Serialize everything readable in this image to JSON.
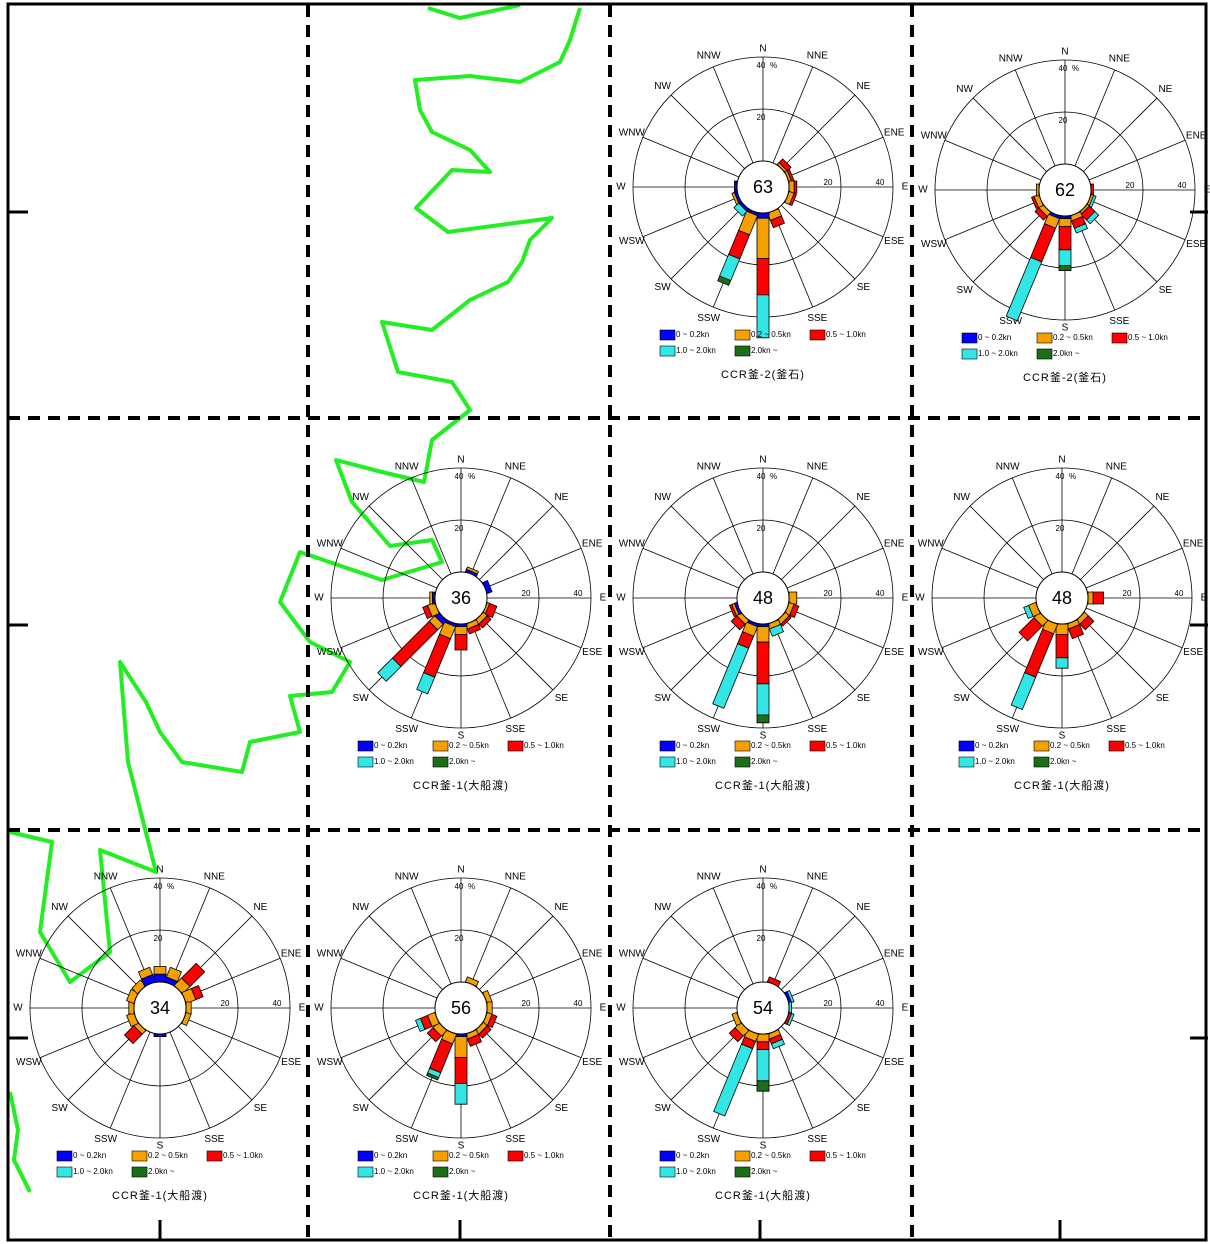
{
  "chart_data": [
    {
      "type": "rose",
      "title": "CCR釜-2(釜石)",
      "center_label": 63,
      "directions": [
        "N",
        "NNE",
        "NE",
        "ENE",
        "E",
        "ESE",
        "SE",
        "SSE",
        "S",
        "SSW",
        "SW",
        "WSW",
        "W",
        "WNW",
        "NW",
        "NNW"
      ],
      "rlim": [
        0,
        40
      ],
      "rticks": [
        20,
        40
      ],
      "r_unit": "%",
      "series": [
        {
          "name": "0 ~ 0.2kn",
          "color": "#0000ff",
          "values": [
            0,
            0,
            0,
            0,
            0,
            0,
            0,
            0,
            2,
            1,
            1,
            1,
            1,
            0,
            0,
            0
          ]
        },
        {
          "name": "0.2 ~ 0.5kn",
          "color": "#f5a000",
          "values": [
            0,
            0,
            1,
            1,
            2,
            2,
            0,
            3,
            15.5,
            8,
            0,
            1,
            0,
            0,
            0,
            0
          ]
        },
        {
          "name": "0.5 ~ 1.0kn",
          "color": "#ff0000",
          "values": [
            0,
            0,
            2,
            1,
            1,
            1,
            0,
            3,
            14,
            10,
            0,
            0,
            0,
            0,
            0,
            0
          ]
        },
        {
          "name": "1.0 ~ 2.0kn",
          "color": "#33e6e6",
          "values": [
            0,
            0,
            0,
            0,
            0,
            0,
            0,
            0,
            16.5,
            9,
            2.5,
            0,
            0,
            0,
            0,
            0
          ]
        },
        {
          "name": "2.0kn ~",
          "color": "#1a6e1a",
          "values": [
            0,
            0,
            0,
            0,
            0,
            0,
            0,
            0,
            0,
            2,
            0,
            0,
            0,
            0,
            0,
            0
          ]
        }
      ]
    },
    {
      "type": "rose",
      "title": "CCR釜-2(釜石)",
      "center_label": 62,
      "directions": [
        "N",
        "NNE",
        "NE",
        "ENE",
        "E",
        "ESE",
        "SE",
        "SSE",
        "S",
        "SSW",
        "SW",
        "WSW",
        "W",
        "WNW",
        "NW",
        "NNW"
      ],
      "rlim": [
        0,
        40
      ],
      "rticks": [
        20,
        40
      ],
      "r_unit": "%",
      "series": [
        {
          "name": "0 ~ 0.2kn",
          "color": "#0000ff",
          "values": [
            0,
            0,
            0,
            0,
            0,
            0,
            0,
            0,
            1,
            1,
            0,
            0,
            0,
            0,
            0,
            0
          ]
        },
        {
          "name": "0.2 ~ 0.5kn",
          "color": "#f5a000",
          "values": [
            0,
            0,
            0,
            0,
            0,
            1,
            1,
            2,
            3,
            4,
            2,
            2,
            1,
            0,
            0,
            0
          ]
        },
        {
          "name": "0.5 ~ 1.0kn",
          "color": "#ff0000",
          "values": [
            0,
            0,
            0,
            0,
            1,
            0,
            3,
            3,
            9,
            14,
            2,
            1,
            0,
            0,
            0,
            0
          ]
        },
        {
          "name": "1.0 ~ 2.0kn",
          "color": "#33e6e6",
          "values": [
            0,
            0,
            0,
            0,
            0,
            1,
            2,
            2,
            6,
            24.5,
            0,
            0,
            0,
            0,
            0,
            0
          ]
        },
        {
          "name": "2.0kn ~",
          "color": "#1a6e1a",
          "values": [
            0,
            0,
            0,
            0,
            0,
            0,
            0,
            0,
            2,
            0,
            0,
            0,
            0,
            0,
            0,
            0
          ]
        }
      ]
    },
    {
      "type": "rose",
      "title": "CCR釜-1(大船渡)",
      "center_label": 36,
      "directions": [
        "N",
        "NNE",
        "NE",
        "ENE",
        "E",
        "ESE",
        "SE",
        "SSE",
        "S",
        "SSW",
        "SW",
        "WSW",
        "W",
        "WNW",
        "NW",
        "NNW"
      ],
      "rlim": [
        0,
        40
      ],
      "rticks": [
        20,
        40
      ],
      "r_unit": "%",
      "series": [
        {
          "name": "0 ~ 0.2kn",
          "color": "#0000ff",
          "values": [
            0,
            1,
            0,
            2,
            0,
            0,
            0,
            0,
            1,
            1,
            2,
            0,
            1,
            0,
            0,
            0
          ]
        },
        {
          "name": "0.2 ~ 0.5kn",
          "color": "#f5a000",
          "values": [
            0,
            1,
            0,
            0,
            0,
            1,
            2,
            2,
            3,
            5,
            3,
            3,
            1,
            0,
            0,
            0
          ]
        },
        {
          "name": "0.5 ~ 1.0kn",
          "color": "#ff0000",
          "values": [
            0,
            0,
            0,
            0,
            0,
            3,
            2,
            2,
            6,
            16,
            20,
            2,
            0,
            0,
            0,
            0
          ]
        },
        {
          "name": "1.0 ~ 2.0kn",
          "color": "#33e6e6",
          "values": [
            0,
            0,
            0,
            0,
            0,
            0,
            0,
            0,
            0,
            7,
            8,
            0,
            0,
            0,
            0,
            0
          ]
        },
        {
          "name": "2.0kn ~",
          "color": "#1a6e1a",
          "values": [
            0,
            0,
            0,
            0,
            0,
            0,
            0,
            0,
            0,
            0,
            0,
            0,
            0,
            0,
            0,
            0
          ]
        }
      ]
    },
    {
      "type": "rose",
      "title": "CCR釜-1(大船渡)",
      "center_label": 48,
      "directions": [
        "N",
        "NNE",
        "NE",
        "ENE",
        "E",
        "ESE",
        "SE",
        "SSE",
        "S",
        "SSW",
        "SW",
        "WSW",
        "W",
        "WNW",
        "NW",
        "NNW"
      ],
      "rlim": [
        0,
        40
      ],
      "rticks": [
        20,
        40
      ],
      "r_unit": "%",
      "series": [
        {
          "name": "0 ~ 0.2kn",
          "color": "#0000ff",
          "values": [
            0,
            0,
            0,
            0,
            0,
            0,
            0,
            0,
            1,
            1,
            0,
            1,
            0,
            0,
            0,
            0
          ]
        },
        {
          "name": "0.2 ~ 0.5kn",
          "color": "#f5a000",
          "values": [
            0,
            0,
            0,
            0,
            3,
            2,
            2,
            2,
            6,
            4,
            2,
            1,
            0,
            0,
            0,
            0
          ]
        },
        {
          "name": "0.5 ~ 1.0kn",
          "color": "#ff0000",
          "values": [
            0,
            0,
            0,
            0,
            0,
            2,
            1,
            0,
            16,
            5,
            3,
            1,
            0,
            0,
            0,
            0
          ]
        },
        {
          "name": "1.0 ~ 2.0kn",
          "color": "#33e6e6",
          "values": [
            0,
            0,
            0,
            0,
            0,
            0,
            0,
            3,
            12,
            25,
            0,
            0,
            0,
            0,
            0,
            0
          ]
        },
        {
          "name": "2.0kn ~",
          "color": "#1a6e1a",
          "values": [
            0,
            0,
            0,
            0,
            0,
            0,
            0,
            0,
            3,
            0,
            0,
            0,
            0,
            0,
            0,
            0
          ]
        }
      ]
    },
    {
      "type": "rose",
      "title": "CCR釜-1(大船渡)",
      "center_label": 48,
      "directions": [
        "N",
        "NNE",
        "NE",
        "ENE",
        "E",
        "ESE",
        "SE",
        "SSE",
        "S",
        "SSW",
        "SW",
        "WSW",
        "W",
        "WNW",
        "NW",
        "NNW"
      ],
      "rlim": [
        0,
        40
      ],
      "rticks": [
        20,
        40
      ],
      "r_unit": "%",
      "series": [
        {
          "name": "0 ~ 0.2kn",
          "color": "#0000ff",
          "values": [
            0,
            0,
            0,
            0,
            0,
            0,
            0,
            0,
            0,
            0,
            0,
            0,
            0,
            0,
            0,
            0
          ]
        },
        {
          "name": "0.2 ~ 0.5kn",
          "color": "#f5a000",
          "values": [
            0,
            0,
            0,
            0,
            2,
            0,
            2,
            2,
            4,
            4,
            3,
            3,
            0,
            0,
            0,
            0
          ]
        },
        {
          "name": "0.5 ~ 1.0kn",
          "color": "#ff0000",
          "values": [
            0,
            0,
            0,
            0,
            4,
            0,
            3,
            4,
            9,
            18,
            8,
            0,
            0,
            0,
            0,
            0
          ]
        },
        {
          "name": "1.0 ~ 2.0kn",
          "color": "#33e6e6",
          "values": [
            0,
            0,
            0,
            0,
            0,
            0,
            0,
            0,
            4,
            13.5,
            0,
            2,
            0,
            0,
            0,
            0
          ]
        },
        {
          "name": "2.0kn ~",
          "color": "#1a6e1a",
          "values": [
            0,
            0,
            0,
            0,
            0,
            0,
            0,
            0,
            0,
            0,
            0,
            0,
            0,
            0,
            0,
            0
          ]
        }
      ]
    },
    {
      "type": "rose",
      "title": "CCR釜-1(大船渡)",
      "center_label": 34,
      "directions": [
        "N",
        "NNE",
        "NE",
        "ENE",
        "E",
        "ESE",
        "SE",
        "SSE",
        "S",
        "SSW",
        "SW",
        "WSW",
        "W",
        "WNW",
        "NW",
        "NNW"
      ],
      "rlim": [
        0,
        40
      ],
      "rticks": [
        20,
        40
      ],
      "r_unit": "%",
      "series": [
        {
          "name": "0 ~ 0.2kn",
          "color": "#0000ff",
          "values": [
            3,
            2,
            0,
            0,
            0,
            0,
            0,
            0,
            1,
            0,
            0,
            0,
            0,
            0,
            0,
            3
          ]
        },
        {
          "name": "0.2 ~ 0.5kn",
          "color": "#f5a000",
          "values": [
            3,
            4,
            4,
            4,
            2,
            2,
            0,
            0,
            0,
            0,
            2,
            3,
            2,
            3,
            3,
            3
          ]
        },
        {
          "name": "0.5 ~ 1.0kn",
          "color": "#ff0000",
          "values": [
            0,
            0,
            8,
            3,
            0,
            0,
            0,
            0,
            0,
            0,
            5,
            0,
            0,
            0,
            0,
            0
          ]
        },
        {
          "name": "1.0 ~ 2.0kn",
          "color": "#33e6e6",
          "values": [
            0,
            0,
            0,
            0,
            0,
            0,
            0,
            0,
            0,
            0,
            0,
            0,
            0,
            0,
            0,
            0
          ]
        },
        {
          "name": "2.0kn ~",
          "color": "#1a6e1a",
          "values": [
            0,
            0,
            0,
            0,
            0,
            0,
            0,
            0,
            0,
            0,
            0,
            0,
            0,
            0,
            0,
            0
          ]
        }
      ]
    },
    {
      "type": "rose",
      "title": "CCR釜-1(大船渡)",
      "center_label": 56,
      "directions": [
        "N",
        "NNE",
        "NE",
        "ENE",
        "E",
        "ESE",
        "SE",
        "SSE",
        "S",
        "SSW",
        "SW",
        "WSW",
        "W",
        "WNW",
        "NW",
        "NNW"
      ],
      "rlim": [
        0,
        40
      ],
      "rticks": [
        20,
        40
      ],
      "r_unit": "%",
      "series": [
        {
          "name": "0 ~ 0.2kn",
          "color": "#0000ff",
          "values": [
            0,
            0,
            0,
            0,
            0,
            0,
            0,
            0,
            1,
            0,
            0,
            0,
            0,
            0,
            0,
            0
          ]
        },
        {
          "name": "0.2 ~ 0.5kn",
          "color": "#f5a000",
          "values": [
            0,
            2,
            0,
            2,
            2,
            2,
            2,
            2,
            8,
            4,
            3,
            3,
            0,
            0,
            0,
            0
          ]
        },
        {
          "name": "0.5 ~ 1.0kn",
          "color": "#ff0000",
          "values": [
            0,
            0,
            0,
            0,
            0,
            2,
            2,
            3,
            10,
            12,
            3,
            3,
            0,
            0,
            0,
            0
          ]
        },
        {
          "name": "1.0 ~ 2.0kn",
          "color": "#33e6e6",
          "values": [
            0,
            0,
            0,
            0,
            0,
            0,
            0,
            0,
            8,
            2,
            0,
            2,
            0,
            0,
            0,
            0
          ]
        },
        {
          "name": "2.0kn ~",
          "color": "#1a6e1a",
          "values": [
            0,
            0,
            0,
            0,
            0,
            0,
            0,
            0,
            0,
            1,
            0,
            0,
            0,
            0,
            0,
            0
          ]
        }
      ]
    },
    {
      "type": "rose",
      "title": "CCR釜-1(大船渡)",
      "center_label": 54,
      "directions": [
        "N",
        "NNE",
        "NE",
        "ENE",
        "E",
        "ESE",
        "SE",
        "SSE",
        "S",
        "SSW",
        "SW",
        "WSW",
        "W",
        "WNW",
        "NW",
        "NNW"
      ],
      "rlim": [
        0,
        40
      ],
      "rticks": [
        20,
        40
      ],
      "r_unit": "%",
      "series": [
        {
          "name": "0 ~ 0.2kn",
          "color": "#0000ff",
          "values": [
            0,
            0,
            0,
            1,
            0,
            0,
            0,
            0,
            0,
            0,
            0,
            0,
            0,
            0,
            0,
            0
          ]
        },
        {
          "name": "0.2 ~ 0.5kn",
          "color": "#f5a000",
          "values": [
            0,
            0,
            0,
            0,
            0,
            0,
            0,
            2,
            3,
            3,
            3,
            2,
            0,
            0,
            0,
            0
          ]
        },
        {
          "name": "0.5 ~ 1.0kn",
          "color": "#ff0000",
          "values": [
            0,
            2,
            0,
            0,
            0,
            1,
            0,
            2,
            3,
            3,
            3,
            0,
            0,
            0,
            0,
            0
          ]
        },
        {
          "name": "1.0 ~ 2.0kn",
          "color": "#33e6e6",
          "values": [
            0,
            0,
            0,
            1,
            1,
            1,
            0,
            2,
            12,
            28,
            0,
            0,
            0,
            0,
            0,
            0
          ]
        },
        {
          "name": "2.0kn ~",
          "color": "#1a6e1a",
          "values": [
            0,
            0,
            0,
            0,
            0,
            0,
            0,
            0,
            4,
            0,
            0,
            0,
            0,
            0,
            0,
            0
          ]
        }
      ]
    }
  ]
}
